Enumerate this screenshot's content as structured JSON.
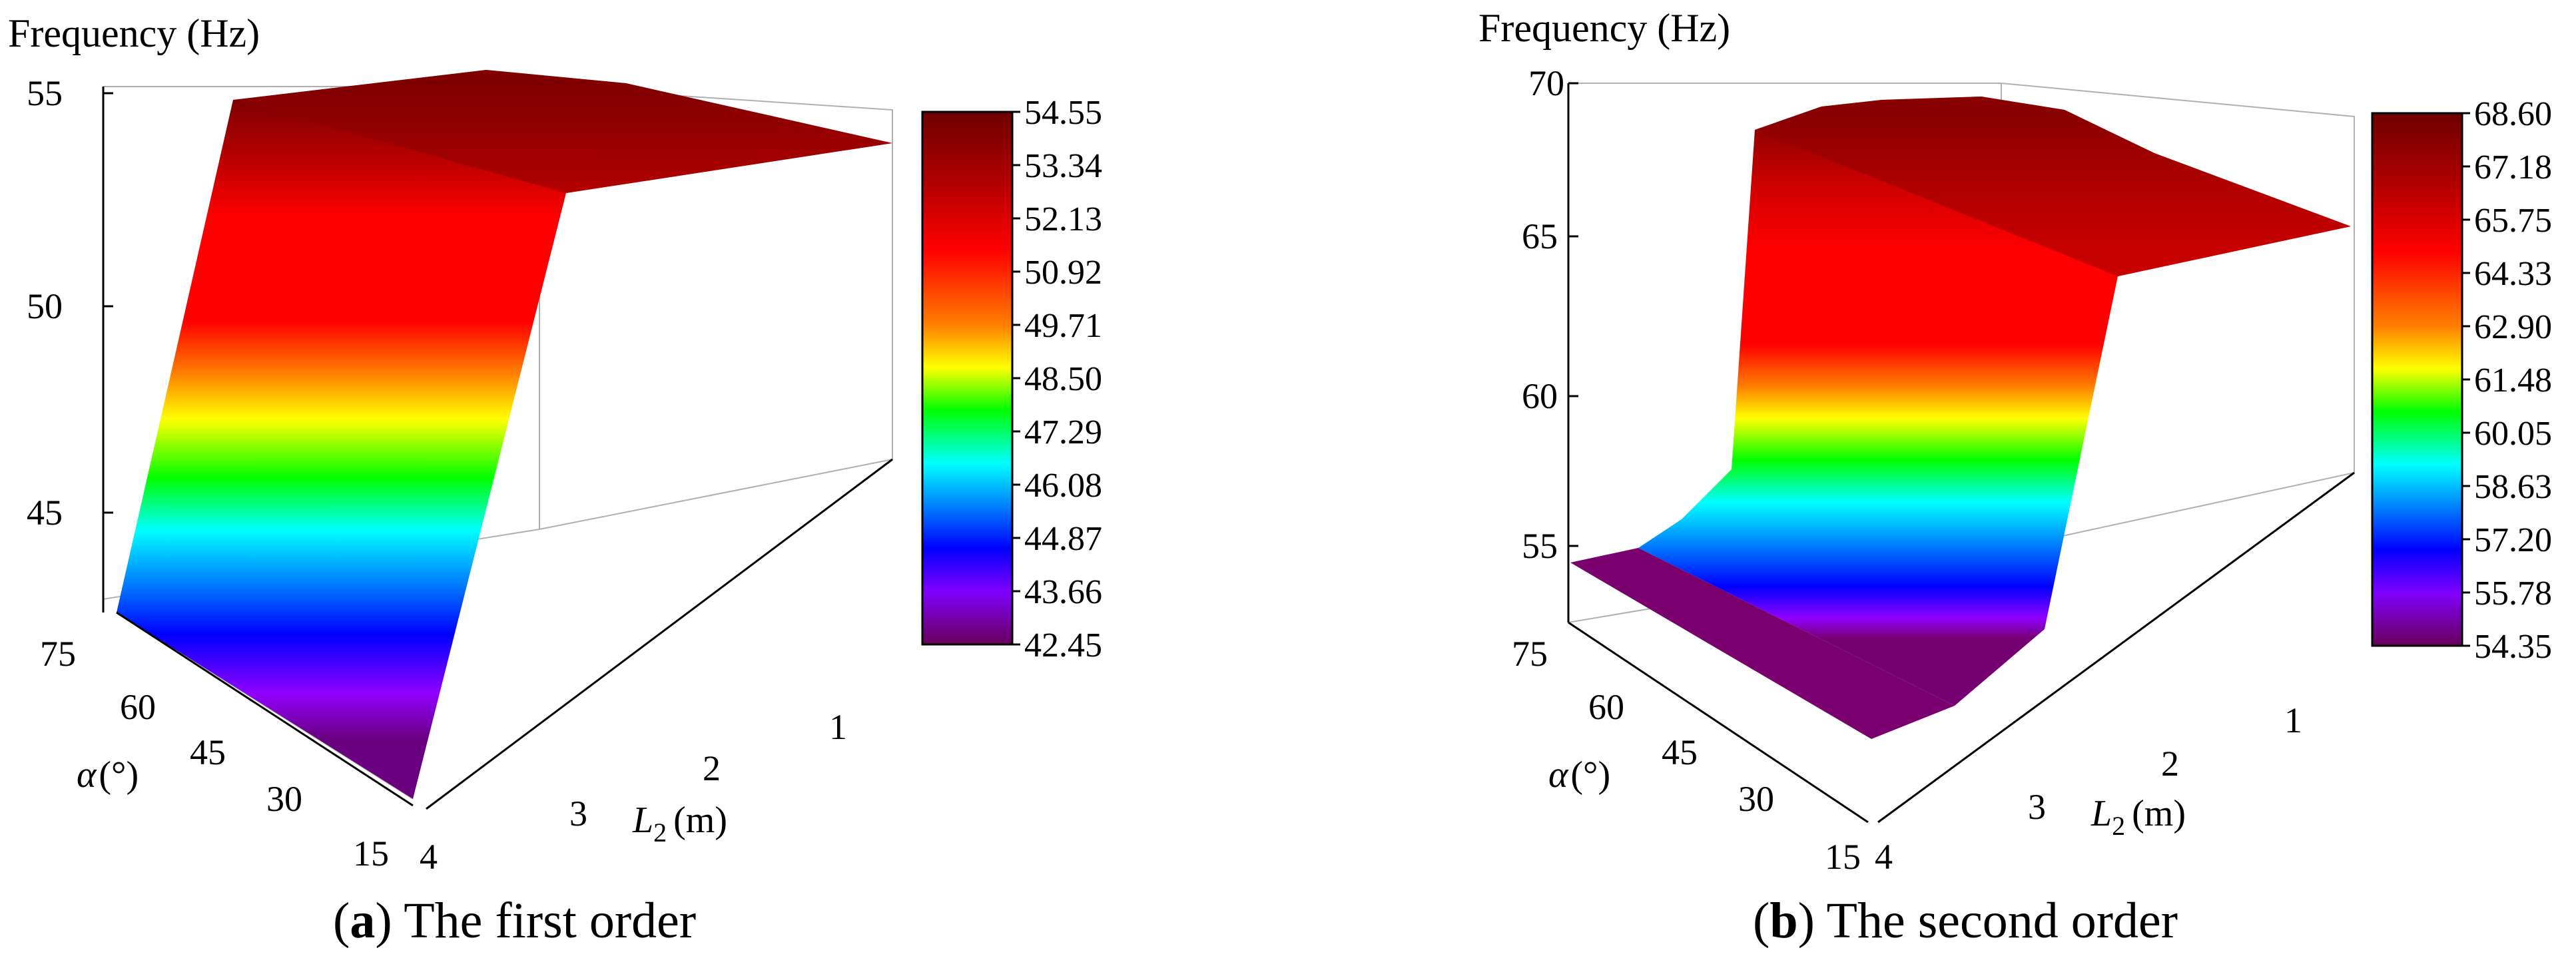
{
  "chart_data": [
    {
      "type": "surface3d",
      "panel": "a",
      "zlabel": "Frequency (Hz)",
      "xlabel_symbol": "α",
      "xlabel_unit": "(°)",
      "ylabel_symbol": "L",
      "ylabel_sub": "2",
      "ylabel_unit": "(m)",
      "z_ticks": [
        "55",
        "50",
        "45"
      ],
      "zlim": [
        42.0,
        55.0
      ],
      "alpha_ticks": [
        "75",
        "60",
        "45",
        "30",
        "15"
      ],
      "l2_ticks": [
        "1",
        "2",
        "3",
        "4"
      ],
      "colorbar_ticks": [
        "54.55",
        "53.34",
        "52.13",
        "50.92",
        "49.71",
        "48.50",
        "47.29",
        "46.08",
        "44.87",
        "43.66",
        "42.45"
      ],
      "colorbar_range": [
        42.45,
        54.55
      ],
      "surface": {
        "front_edge_L2_4": [
          {
            "alpha": 75,
            "frequency": 43.3
          },
          {
            "alpha": 15,
            "frequency": 43.3
          }
        ],
        "back_edge_L2_1": [
          {
            "alpha": 75,
            "frequency": 54.5
          },
          {
            "alpha": 60,
            "frequency": 54.4
          },
          {
            "alpha": 45,
            "frequency": 54.3
          },
          {
            "alpha": 30,
            "frequency": 54.35
          },
          {
            "alpha": 15,
            "frequency": 54.55
          }
        ]
      },
      "caption_label": "a",
      "caption_text": " The first order"
    },
    {
      "type": "surface3d",
      "panel": "b",
      "zlabel": "Frequency (Hz)",
      "xlabel_symbol": "α",
      "xlabel_unit": "(°)",
      "ylabel_symbol": "L",
      "ylabel_sub": "2",
      "ylabel_unit": "(m)",
      "z_ticks": [
        "70",
        "65",
        "60",
        "55"
      ],
      "zlim": [
        53.0,
        70.0
      ],
      "alpha_ticks": [
        "75",
        "60",
        "45",
        "30",
        "15"
      ],
      "l2_ticks": [
        "1",
        "2",
        "3",
        "4"
      ],
      "colorbar_ticks": [
        "68.60",
        "67.18",
        "65.75",
        "64.33",
        "62.90",
        "61.48",
        "60.05",
        "58.63",
        "57.20",
        "55.78",
        "54.35"
      ],
      "colorbar_range": [
        54.35,
        68.6
      ],
      "surface": {
        "front_edge_L2_4": [
          {
            "alpha": 75,
            "frequency": 54.35
          },
          {
            "alpha": 15,
            "frequency": 54.35
          }
        ],
        "back_edge_L2_1": [
          {
            "alpha": 75,
            "frequency": 68.4
          },
          {
            "alpha": 60,
            "frequency": 68.3
          },
          {
            "alpha": 45,
            "frequency": 68.6
          },
          {
            "alpha": 30,
            "frequency": 68.1
          },
          {
            "alpha": 15,
            "frequency": 66.8
          }
        ]
      },
      "caption_label": "b",
      "caption_text": " The second order"
    }
  ]
}
